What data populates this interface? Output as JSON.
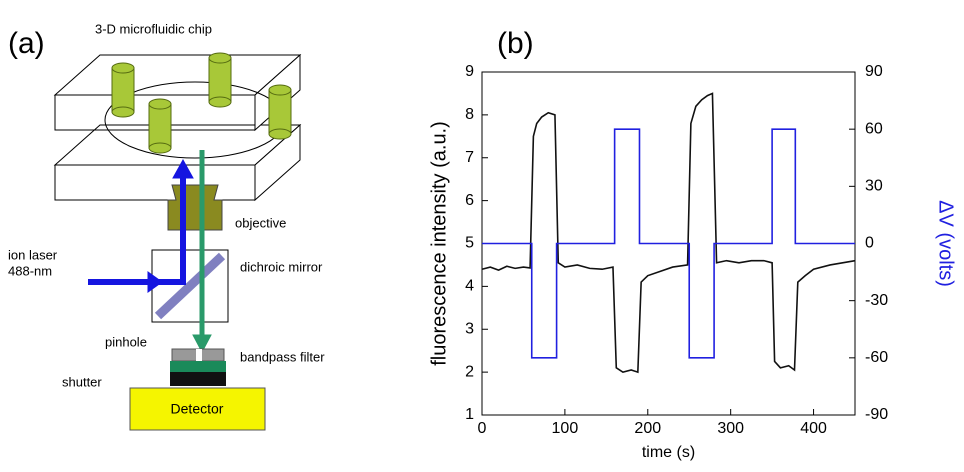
{
  "panel_a": {
    "panel_label": "(a)",
    "chip": "3-D microfluidic chip",
    "objective": "objective",
    "laser": [
      "ion laser",
      "488-nm"
    ],
    "mirror": "dichroic mirror",
    "pinhole": "pinhole",
    "filter": "bandpass filter",
    "shutter": "shutter",
    "detector": "Detector"
  },
  "chart_data": {
    "type": "line",
    "panel_label": "(b)",
    "x_label": "time (s)",
    "y_label": "fluorescence intensity (a.u.)",
    "y2_label": "ΔV (volts)",
    "y2_color": "#2020e0",
    "xlim": [
      0,
      450
    ],
    "xticks": [
      0,
      100,
      200,
      300,
      400
    ],
    "ylim": [
      1,
      9
    ],
    "yticks": [
      1,
      2,
      3,
      4,
      5,
      6,
      7,
      8,
      9
    ],
    "y2lim": [
      -90,
      90
    ],
    "y2ticks": [
      -90,
      -60,
      -30,
      0,
      30,
      60,
      90
    ],
    "series": [
      {
        "color": "#111111",
        "x": [
          0,
          10,
          20,
          30,
          40,
          50,
          58,
          62,
          66,
          72,
          80,
          88,
          92,
          100,
          115,
          130,
          145,
          158,
          162,
          170,
          180,
          188,
          192,
          200,
          215,
          230,
          248,
          252,
          258,
          265,
          272,
          278,
          283,
          295,
          310,
          325,
          340,
          350,
          353,
          360,
          370,
          377,
          381,
          390,
          400,
          420,
          435,
          450
        ],
        "values": [
          4.4,
          4.45,
          4.38,
          4.47,
          4.42,
          4.45,
          4.43,
          7.5,
          7.8,
          7.95,
          8.05,
          8.0,
          4.55,
          4.45,
          4.5,
          4.42,
          4.4,
          4.45,
          2.1,
          2.0,
          2.05,
          2.0,
          4.1,
          4.25,
          4.35,
          4.45,
          4.5,
          7.8,
          8.2,
          8.35,
          8.45,
          8.5,
          4.55,
          4.6,
          4.55,
          4.6,
          4.6,
          4.55,
          2.25,
          2.1,
          2.15,
          2.05,
          4.1,
          4.25,
          4.4,
          4.5,
          4.55,
          4.6
        ]
      },
      {
        "color": "#2020e0",
        "axis": "y2",
        "x": [
          0,
          60,
          60,
          90,
          90,
          160,
          160,
          190,
          190,
          250,
          250,
          280,
          280,
          350,
          350,
          378,
          378,
          450
        ],
        "values": [
          0,
          0,
          -60,
          -60,
          0,
          0,
          60,
          60,
          0,
          0,
          -60,
          -60,
          0,
          0,
          60,
          60,
          0,
          0
        ]
      }
    ]
  }
}
